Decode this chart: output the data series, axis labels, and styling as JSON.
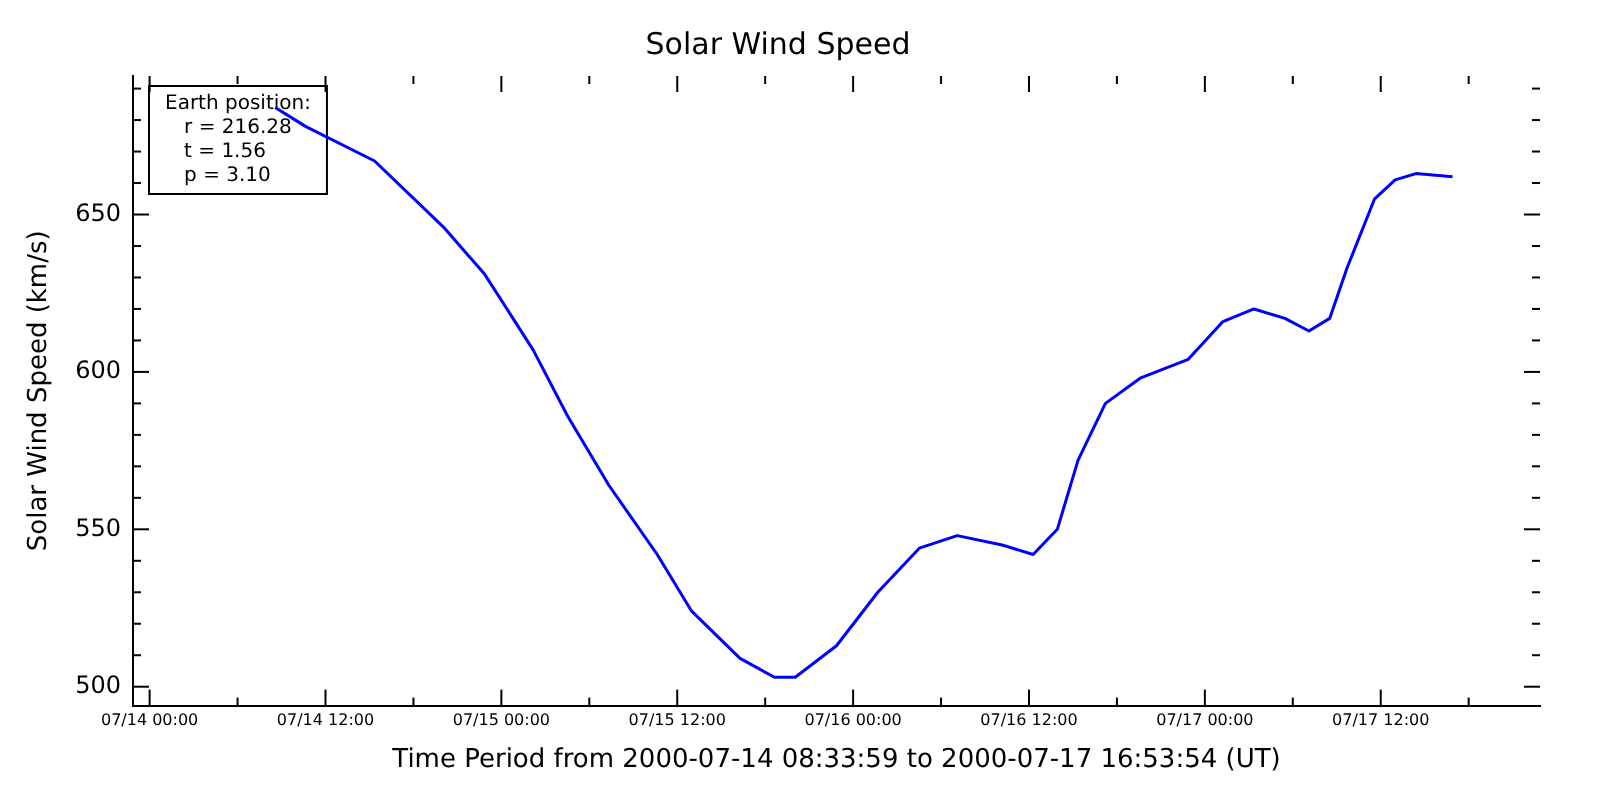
{
  "chart_data": {
    "type": "line",
    "title": "Solar Wind Speed",
    "xlabel": "Time Period from 2000-07-14 08:33:59 to 2000-07-17 16:53:54 (UT)",
    "ylabel": "Solar Wind Speed (km/s)",
    "annotations": [
      "Earth position:\n   r = 216.28\n   t = 1.56\n   p = 3.10"
    ],
    "x": [
      "2000-07-14T08:34",
      "2000-07-14T10:38",
      "2000-07-14T15:21",
      "2000-07-14T20:03",
      "2000-07-14T22:52",
      "2000-07-15T02:10",
      "2000-07-15T04:31",
      "2000-07-15T07:20",
      "2000-07-15T10:38",
      "2000-07-15T12:59",
      "2000-07-15T16:17",
      "2000-07-15T18:38",
      "2000-07-15T20:03",
      "2000-07-15T22:52",
      "2000-07-16T01:41",
      "2000-07-16T04:31",
      "2000-07-16T07:06",
      "2000-07-16T10:10",
      "2000-07-16T12:17",
      "2000-07-16T13:56",
      "2000-07-16T15:21",
      "2000-07-16T17:13",
      "2000-07-16T19:35",
      "2000-07-16T22:52",
      "2000-07-17T01:14",
      "2000-07-17T03:21",
      "2000-07-17T05:28",
      "2000-07-17T07:06",
      "2000-07-17T08:31",
      "2000-07-17T09:42",
      "2000-07-17T11:35",
      "2000-07-17T12:59",
      "2000-07-17T14:24",
      "2000-07-17T16:54"
    ],
    "series": [
      {
        "color": "#0000ff",
        "values": [
          684,
          678,
          667,
          646,
          631,
          607,
          586,
          564,
          542,
          524,
          509,
          503,
          503,
          513,
          530,
          544,
          548,
          545,
          542,
          550,
          572,
          590,
          598,
          604,
          616,
          620,
          617,
          613,
          617,
          633,
          655,
          661,
          663,
          662
        ]
      }
    ],
    "xlim": [
      "2000-07-13T22:52",
      "2000-07-17T22:52"
    ],
    "xticks": [
      {
        "value": "2000-07-14T00:00",
        "label": "07/14 00:00"
      },
      {
        "value": "2000-07-14T06:00",
        "label": null
      },
      {
        "value": "2000-07-14T12:00",
        "label": "07/14 12:00"
      },
      {
        "value": "2000-07-14T18:00",
        "label": null
      },
      {
        "value": "2000-07-15T00:00",
        "label": "07/15 00:00"
      },
      {
        "value": "2000-07-15T06:00",
        "label": null
      },
      {
        "value": "2000-07-15T12:00",
        "label": "07/15 12:00"
      },
      {
        "value": "2000-07-15T18:00",
        "label": null
      },
      {
        "value": "2000-07-16T00:00",
        "label": "07/16 00:00"
      },
      {
        "value": "2000-07-16T06:00",
        "label": null
      },
      {
        "value": "2000-07-16T12:00",
        "label": "07/16 12:00"
      },
      {
        "value": "2000-07-16T18:00",
        "label": null
      },
      {
        "value": "2000-07-17T00:00",
        "label": "07/17 00:00"
      },
      {
        "value": "2000-07-17T06:00",
        "label": null
      },
      {
        "value": "2000-07-17T12:00",
        "label": "07/17 12:00"
      },
      {
        "value": "2000-07-17T18:00",
        "label": null
      }
    ],
    "ylim": [
      494,
      694
    ],
    "yticks": [
      500,
      {
        "value": 510,
        "label": null
      },
      {
        "value": 520,
        "label": null
      },
      {
        "value": 530,
        "label": null
      },
      {
        "value": 540,
        "label": null
      },
      550,
      {
        "value": 560,
        "label": null
      },
      {
        "value": 570,
        "label": null
      },
      {
        "value": 580,
        "label": null
      },
      {
        "value": 590,
        "label": null
      },
      600,
      {
        "value": 610,
        "label": null
      },
      {
        "value": 620,
        "label": null
      },
      {
        "value": 630,
        "label": null
      },
      {
        "value": 640,
        "label": null
      },
      650,
      {
        "value": 660,
        "label": null
      },
      {
        "value": 670,
        "label": null
      },
      {
        "value": 680,
        "label": null
      },
      {
        "value": 690,
        "label": null
      }
    ],
    "grid": false,
    "legend": false,
    "marker": "none",
    "line_style": "solid"
  }
}
